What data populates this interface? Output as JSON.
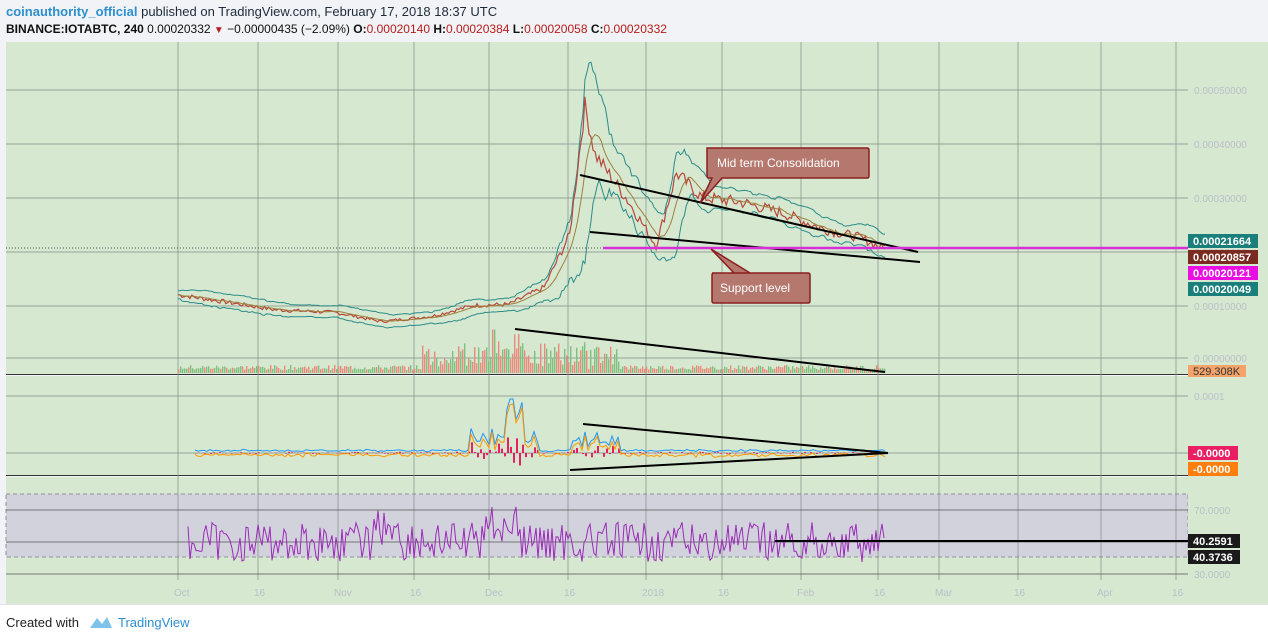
{
  "header": {
    "author": "coinauthority_official",
    "published": "published on TradingView.com, February 17, 2018 18:37 UTC",
    "symbol": "BINANCE:IOTABTC, 240",
    "last": "0.00020332",
    "change": "−0.00000435 (−2.09%)",
    "o_label": "O:",
    "o": "0.00020140",
    "h_label": "H:",
    "h": "0.00020384",
    "l_label": "L:",
    "l": "0.00020058",
    "c_label": "C:",
    "c": "0.00020332"
  },
  "annotations": {
    "consolidation": "Mid term Consolidation",
    "support": "Support level"
  },
  "price_labels": {
    "p1": "0.00021664",
    "p2": "0.00020857",
    "p3": "0.00020121",
    "p4": "0.00020049",
    "volume": "529.308K",
    "macd1": "-0.0000",
    "macd2": "-0.0000",
    "rsi1": "40.2591",
    "rsi2": "40.3736"
  },
  "colors": {
    "background": "#d7e8d1",
    "support_line": "#d62fd6",
    "label_teal": "#1a7f7a",
    "label_brown": "#7a2a1e",
    "label_magenta": "#e90fe3",
    "label_pink": "#e91e63",
    "label_orange": "#ff7f0e",
    "label_volume": "#f4a46a",
    "rsi_band": "#d2d2dc",
    "rsi_line": "#9b2bb8"
  },
  "chart_data": {
    "type": "line",
    "symbol": "BINANCE:IOTABTC",
    "timeframe": "240",
    "x_ticks": [
      "Oct",
      "16",
      "Nov",
      "16",
      "Dec",
      "16",
      "2018",
      "16",
      "Feb",
      "16",
      "Mar",
      "16",
      "Apr",
      "16"
    ],
    "y_ticks_price": [
      "0.00050000",
      "0.00040000",
      "0.00030000",
      "0.00020000",
      "0.00010000",
      "0.00000000"
    ],
    "y_ticks_macd": [
      "0.0001",
      "0.0000"
    ],
    "y_ticks_rsi": [
      "70.0000",
      "50.0000",
      "30.0000"
    ],
    "ylim_price": [
      0.0,
      0.00055
    ],
    "series": [
      {
        "name": "",
        "values": [
          {
            "x": "2017-10-01",
            "y": 0.000118
          },
          {
            "x": "2017-10-10",
            "y": 0.000105
          },
          {
            "x": "2017-10-20",
            "y": 9e-05
          },
          {
            "x": "2017-11-01",
            "y": 8.5e-05
          },
          {
            "x": "2017-11-10",
            "y": 6.8e-05
          },
          {
            "x": "2017-11-20",
            "y": 7.8e-05
          },
          {
            "x": "2017-11-28",
            "y": 9.8e-05
          },
          {
            "x": "2017-12-05",
            "y": 0.0001
          },
          {
            "x": "2017-12-12",
            "y": 0.000132
          },
          {
            "x": "2017-12-17",
            "y": 0.00023
          },
          {
            "x": "2017-12-20",
            "y": 0.00047
          },
          {
            "x": "2017-12-22",
            "y": 0.00038
          },
          {
            "x": "2017-12-28",
            "y": 0.0003
          },
          {
            "x": "2018-01-03",
            "y": 0.00021
          },
          {
            "x": "2018-01-07",
            "y": 0.000345
          },
          {
            "x": "2018-01-12",
            "y": 0.0003
          },
          {
            "x": "2018-01-20",
            "y": 0.00029
          },
          {
            "x": "2018-01-28",
            "y": 0.00027
          },
          {
            "x": "2018-02-05",
            "y": 0.00024
          },
          {
            "x": "2018-02-12",
            "y": 0.000225
          },
          {
            "x": "2018-02-17",
            "y": 0.000203
          }
        ]
      }
    ]
  }
}
